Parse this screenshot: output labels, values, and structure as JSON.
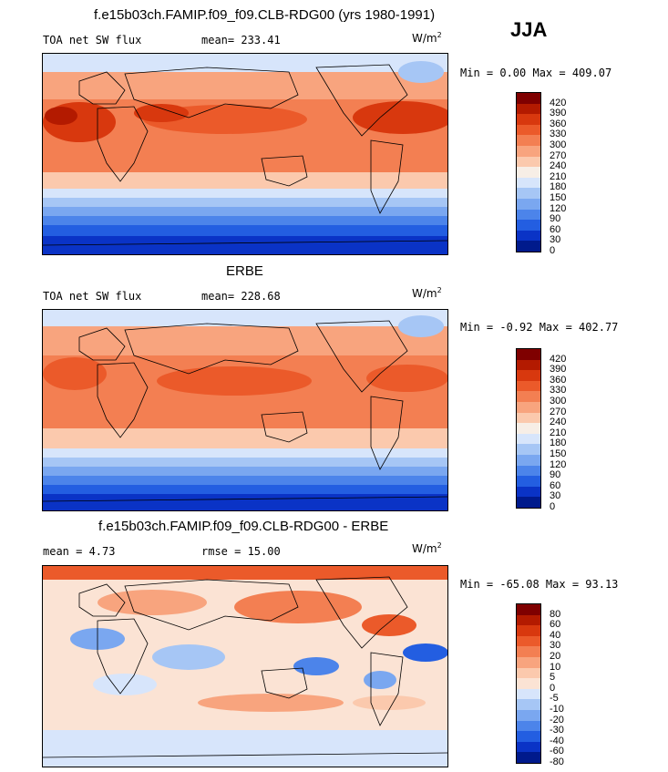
{
  "season": "JJA",
  "units": {
    "base": "W/m",
    "exp": "2"
  },
  "panels": [
    {
      "title": "f.e15b03ch.FAMIP.f09_f09.CLB-RDG00 (yrs 1980-1991)",
      "left_label": "TOA net SW flux",
      "stat_label": "mean= 233.41",
      "minmax": "Min =   0.00 Max = 409.07",
      "colorbar_labels": [
        "420",
        "390",
        "360",
        "330",
        "300",
        "270",
        "240",
        "210",
        "180",
        "150",
        "120",
        "90",
        "60",
        "30",
        "0"
      ],
      "colors": [
        "#7f0000",
        "#b31a00",
        "#d8380e",
        "#eb5a2a",
        "#f37f52",
        "#f8a47e",
        "#fbc9ad",
        "#f7eee6",
        "#d7e5fb",
        "#a6c6f5",
        "#7aa7f0",
        "#4c84ea",
        "#235ee1",
        "#0a33c6",
        "#001a8c"
      ]
    },
    {
      "title": "ERBE",
      "left_label": "TOA net SW flux",
      "stat_label": "mean= 228.68",
      "minmax": "Min =  -0.92 Max = 402.77",
      "colorbar_labels": [
        "420",
        "390",
        "360",
        "330",
        "300",
        "270",
        "240",
        "210",
        "180",
        "150",
        "120",
        "90",
        "60",
        "30",
        "0"
      ],
      "colors": [
        "#7f0000",
        "#b31a00",
        "#d8380e",
        "#eb5a2a",
        "#f37f52",
        "#f8a47e",
        "#fbc9ad",
        "#f7eee6",
        "#d7e5fb",
        "#a6c6f5",
        "#7aa7f0",
        "#4c84ea",
        "#235ee1",
        "#0a33c6",
        "#001a8c"
      ]
    },
    {
      "title": "f.e15b03ch.FAMIP.f09_f09.CLB-RDG00 - ERBE",
      "left_label": "mean =    4.73",
      "stat_label": "rmse =   15.00",
      "minmax": "Min = -65.08 Max =  93.13",
      "colorbar_labels": [
        "80",
        "60",
        "40",
        "30",
        "20",
        "10",
        "5",
        "0",
        "-5",
        "-10",
        "-20",
        "-30",
        "-40",
        "-60",
        "-80"
      ],
      "colors": [
        "#7f0000",
        "#b31a00",
        "#d8380e",
        "#eb5a2a",
        "#f37f52",
        "#f8a47e",
        "#fbc9ad",
        "#fbe3d4",
        "#d7e5fb",
        "#a6c6f5",
        "#7aa7f0",
        "#4c84ea",
        "#235ee1",
        "#0a33c6",
        "#001a8c"
      ]
    }
  ]
}
